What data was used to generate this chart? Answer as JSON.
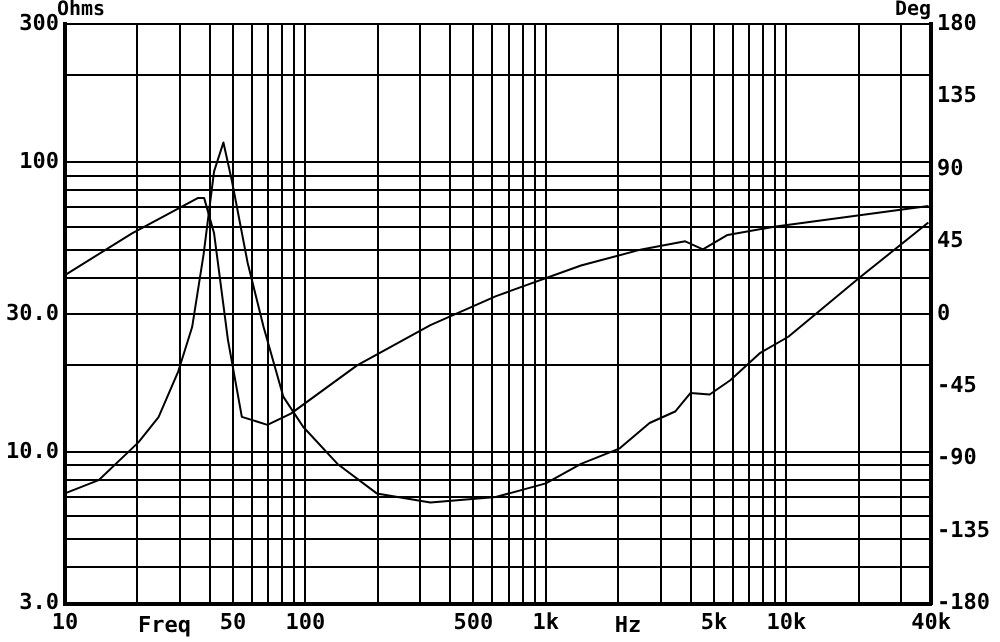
{
  "chart_data": {
    "type": "line",
    "xlabel": "Freq",
    "ylabel": "Ohms",
    "y2label": "Deg",
    "annotations": [
      "Hz"
    ],
    "log": "xy",
    "grid": true,
    "legend": false,
    "marker": "none",
    "line_style": "solid",
    "xlim": [
      10,
      40000
    ],
    "xticks": [
      10,
      {
        "value": 20,
        "label": null
      },
      {
        "value": 30,
        "label": null
      },
      {
        "value": 40,
        "label": null
      },
      50,
      {
        "value": 60,
        "label": null
      },
      {
        "value": 70,
        "label": null
      },
      {
        "value": 80,
        "label": null
      },
      {
        "value": 90,
        "label": null
      },
      100,
      {
        "value": 200,
        "label": null
      },
      {
        "value": 300,
        "label": null
      },
      {
        "value": 400,
        "label": null
      },
      500,
      {
        "value": 600,
        "label": null
      },
      {
        "value": 700,
        "label": null
      },
      {
        "value": 800,
        "label": null
      },
      {
        "value": 900,
        "label": null
      },
      {
        "value": 1000,
        "label": "1k"
      },
      {
        "value": 2000,
        "label": null
      },
      {
        "value": 3000,
        "label": null
      },
      {
        "value": 4000,
        "label": null
      },
      {
        "value": 5000,
        "label": "5k"
      },
      {
        "value": 6000,
        "label": null
      },
      {
        "value": 7000,
        "label": null
      },
      {
        "value": 8000,
        "label": null
      },
      {
        "value": 9000,
        "label": null
      },
      {
        "value": 10000,
        "label": "10k"
      },
      {
        "value": 20000,
        "label": null
      },
      {
        "value": 30000,
        "label": null
      },
      {
        "value": 40000,
        "label": "40k"
      }
    ],
    "ylim": [
      3,
      300
    ],
    "yticks": [
      {
        "value": 3,
        "label": "3.0"
      },
      {
        "value": 4,
        "label": null
      },
      {
        "value": 5,
        "label": null
      },
      {
        "value": 6,
        "label": null
      },
      {
        "value": 7,
        "label": null
      },
      {
        "value": 8,
        "label": null
      },
      {
        "value": 9,
        "label": null
      },
      {
        "value": 10,
        "label": "10.0"
      },
      {
        "value": 20,
        "label": null
      },
      {
        "value": 30,
        "label": "30.0"
      },
      {
        "value": 40,
        "label": null
      },
      {
        "value": 50,
        "label": null
      },
      {
        "value": 60,
        "label": null
      },
      {
        "value": 70,
        "label": null
      },
      {
        "value": 80,
        "label": null
      },
      {
        "value": 90,
        "label": null
      },
      100,
      {
        "value": 200,
        "label": null
      },
      300
    ],
    "y2lim": [
      -180,
      180
    ],
    "y2ticks": [
      -180,
      -135,
      -90,
      -45,
      0,
      45,
      90,
      135,
      180
    ],
    "series": [
      {
        "color": "#000000",
        "x": [
          10,
          13.8,
          20.2,
          24.5,
          29.6,
          33.8,
          37.7,
          41.7,
          45.6,
          49.5,
          57.5,
          67,
          81,
          98,
          136,
          198,
          331,
          620,
          1000,
          1400,
          2030,
          2700,
          3450,
          4000,
          4800,
          5850,
          7800,
          10200,
          20200,
          39000
        ],
        "values": [
          7.2,
          8.0,
          10.8,
          13.2,
          19,
          27,
          48,
          93,
          117,
          86,
          45,
          27,
          15.5,
          12.2,
          9.1,
          7.2,
          6.7,
          7.0,
          7.8,
          9.1,
          10.3,
          12.6,
          13.8,
          16,
          15.8,
          17.7,
          22,
          25,
          40,
          62
        ]
      },
      {
        "color": "#000000",
        "axis": "y2",
        "x": [
          10,
          19,
          35.8,
          37.9,
          41.7,
          47.6,
          54.4,
          69.5,
          87,
          164,
          331,
          621,
          1400,
          2500,
          3800,
          4500,
          5700,
          8900,
          39000
        ],
        "values": [
          24,
          50,
          72,
          72,
          50,
          -16,
          -64,
          -69,
          -62,
          -32,
          -7,
          11,
          30,
          40,
          45,
          40,
          49,
          54,
          67
        ]
      }
    ]
  }
}
